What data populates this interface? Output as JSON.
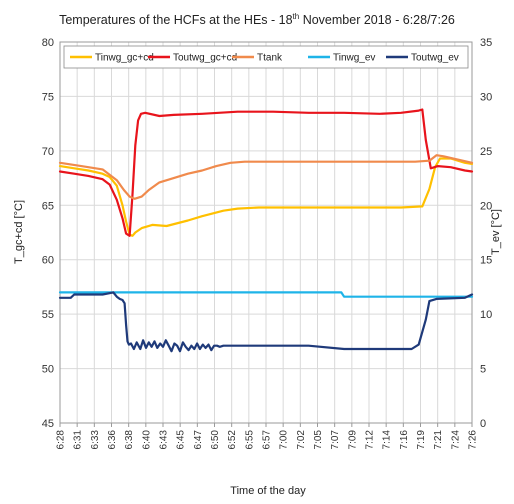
{
  "chart_data": {
    "type": "line",
    "title": {
      "prefix": "Temperatures of the HCFs at the HEs - 18",
      "superscript": "th",
      "suffix": " November 2018 - 6:28/7:26"
    },
    "xlabel": "Time of the day",
    "ylabel_left": "T_gc+cd [°C]",
    "ylabel_right": "T_ev [°C]",
    "ylim_left": [
      45,
      80
    ],
    "ylim_right": [
      0,
      35
    ],
    "yticks_left": [
      45,
      50,
      55,
      60,
      65,
      70,
      75,
      80
    ],
    "yticks_right": [
      0,
      5,
      10,
      15,
      20,
      25,
      30,
      35
    ],
    "x_tick_labels": [
      "6:28",
      "6:31",
      "6:33",
      "6:36",
      "6:38",
      "6:40",
      "6:43",
      "6:45",
      "6:47",
      "6:50",
      "6:52",
      "6:55",
      "6:57",
      "7:00",
      "7:02",
      "7:05",
      "7:07",
      "7:09",
      "7:12",
      "7:14",
      "7:16",
      "7:19",
      "7:21",
      "7:24",
      "7:26"
    ],
    "x_range": [
      0,
      58
    ],
    "grid": true,
    "legend_position": "top",
    "series": [
      {
        "name": "Tinwg_gc+cd",
        "axis": "left",
        "color": "#FFC000",
        "x": [
          0,
          2,
          4,
          6,
          7,
          8,
          8.8,
          9.3,
          9.8,
          10.2,
          10.6,
          11.5,
          13,
          15,
          18,
          20,
          23,
          25,
          28,
          32,
          40,
          48,
          51,
          52,
          52.8,
          53.5,
          55,
          57,
          58
        ],
        "y": [
          68.6,
          68.4,
          68.2,
          67.9,
          67.6,
          66.8,
          65.0,
          63.5,
          62.3,
          62.2,
          62.5,
          62.9,
          63.2,
          63.1,
          63.6,
          64.0,
          64.5,
          64.7,
          64.8,
          64.8,
          64.8,
          64.8,
          64.9,
          66.5,
          68.5,
          69.3,
          69.3,
          68.9,
          68.8
        ]
      },
      {
        "name": "Toutwg_gc+cd",
        "axis": "left",
        "color": "#E8141C",
        "x": [
          0,
          2,
          4,
          6,
          7,
          8,
          8.8,
          9.3,
          9.8,
          10.2,
          10.6,
          11.0,
          11.4,
          12,
          14,
          16,
          20,
          25,
          30,
          35,
          40,
          45,
          48,
          50.5,
          51,
          51.5,
          52.2,
          53.2,
          55,
          57,
          58
        ],
        "y": [
          68.1,
          67.9,
          67.7,
          67.4,
          66.9,
          65.5,
          63.8,
          62.4,
          62.2,
          66.0,
          70.5,
          72.8,
          73.4,
          73.5,
          73.2,
          73.3,
          73.4,
          73.6,
          73.6,
          73.5,
          73.5,
          73.4,
          73.5,
          73.7,
          73.8,
          71.0,
          68.4,
          68.6,
          68.5,
          68.2,
          68.1
        ]
      },
      {
        "name": "Ttank",
        "axis": "left",
        "color": "#F08A4C",
        "x": [
          0,
          3,
          6,
          8,
          9,
          9.8,
          10.5,
          11.5,
          12.5,
          14,
          16,
          18,
          20,
          22,
          24,
          26,
          30,
          35,
          40,
          45,
          50,
          52,
          53,
          54,
          56,
          58
        ],
        "y": [
          68.9,
          68.6,
          68.3,
          67.3,
          66.4,
          65.8,
          65.6,
          65.8,
          66.4,
          67.1,
          67.5,
          67.9,
          68.2,
          68.6,
          68.9,
          69.0,
          69.0,
          69.0,
          69.0,
          69.0,
          69.0,
          69.1,
          69.6,
          69.5,
          69.2,
          68.9
        ]
      },
      {
        "name": "Tinwg_ev",
        "axis": "right",
        "color": "#1EB4E8",
        "x": [
          0,
          5,
          10,
          20,
          30,
          39.6,
          40,
          45,
          50,
          53.5,
          54,
          58
        ],
        "y": [
          12.0,
          12.0,
          12.0,
          12.0,
          12.0,
          12.0,
          11.6,
          11.6,
          11.6,
          11.6,
          11.6,
          11.6
        ]
      },
      {
        "name": "Toutwg_ev",
        "axis": "right",
        "color": "#1F3A7A",
        "x": [
          0,
          1.5,
          2,
          6,
          7.5,
          8,
          8.4,
          8.8,
          9.1,
          9.3,
          9.5,
          9.7,
          10,
          10.4,
          10.8,
          11.3,
          11.7,
          12.1,
          12.5,
          12.9,
          13.3,
          13.7,
          14.1,
          14.5,
          14.9,
          15.3,
          15.7,
          16.1,
          16.5,
          16.9,
          17.3,
          17.7,
          18.1,
          18.5,
          18.9,
          19.3,
          19.7,
          20.1,
          20.5,
          20.9,
          21.3,
          21.7,
          22.1,
          22.5,
          23,
          26,
          30,
          35,
          40,
          45,
          48,
          49.5,
          50.5,
          51.5,
          52,
          53,
          57,
          58
        ],
        "y": [
          11.5,
          11.5,
          11.8,
          11.8,
          12.0,
          11.6,
          11.4,
          11.3,
          11.0,
          9.0,
          7.5,
          7.2,
          7.3,
          6.8,
          7.4,
          6.8,
          7.6,
          6.9,
          7.4,
          7.0,
          7.5,
          6.9,
          7.3,
          7.0,
          7.6,
          7.1,
          6.6,
          7.3,
          7.1,
          6.6,
          7.4,
          7.0,
          6.7,
          7.1,
          6.8,
          7.3,
          6.8,
          7.2,
          6.9,
          7.2,
          6.7,
          7.1,
          7.1,
          7.0,
          7.1,
          7.1,
          7.1,
          7.1,
          6.8,
          6.8,
          6.8,
          6.8,
          7.2,
          9.5,
          11.2,
          11.4,
          11.5,
          11.8
        ]
      }
    ]
  }
}
